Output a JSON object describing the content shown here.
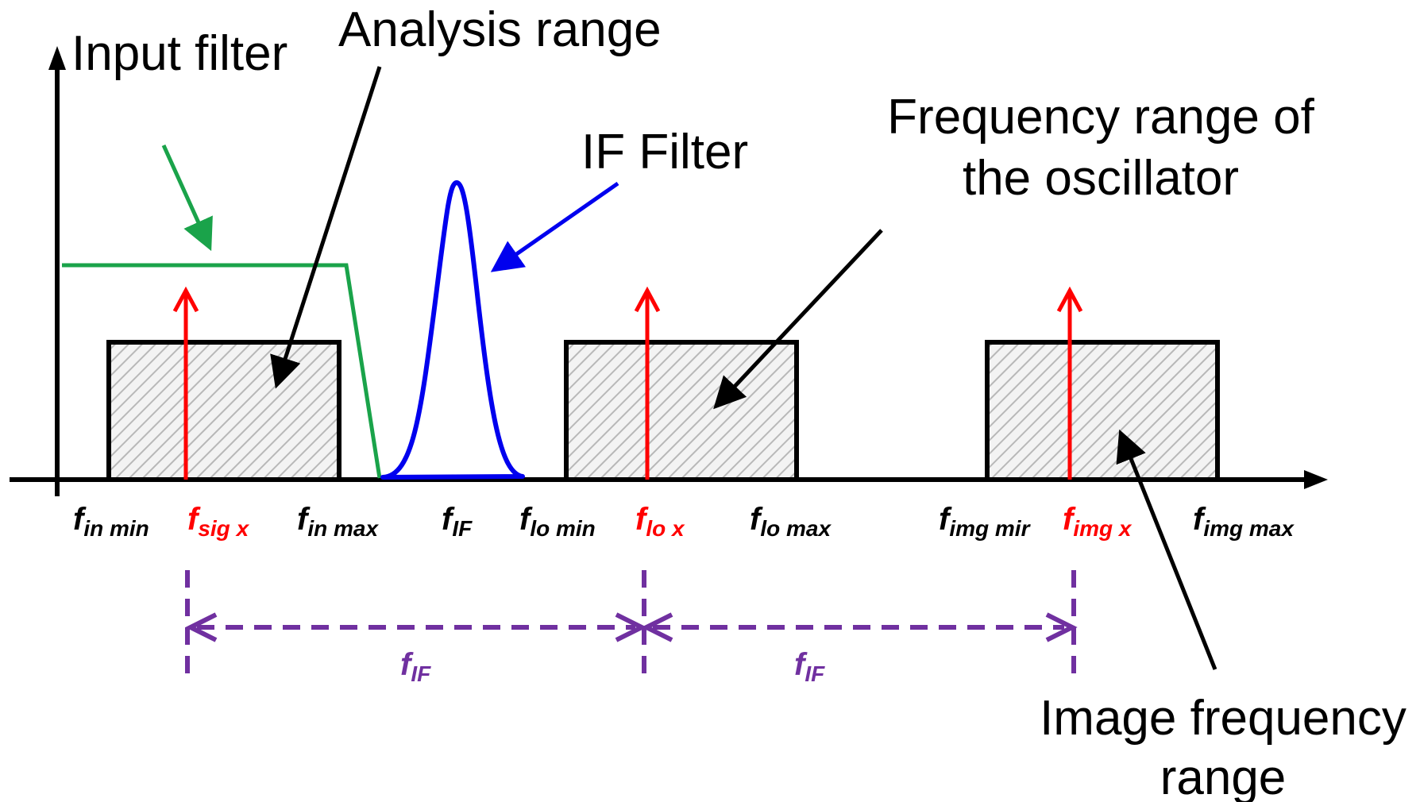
{
  "labels": {
    "input_filter": "Input filter",
    "analysis_range": "Analysis range",
    "if_filter": "IF Filter",
    "oscillator_line1": "Frequency range of",
    "oscillator_line2": "the oscillator",
    "image_line1": "Image frequency",
    "image_line2": "range"
  },
  "ticks": [
    {
      "main": "f",
      "sub": "in min"
    },
    {
      "main": "f",
      "sub": "sig x"
    },
    {
      "main": "f",
      "sub": "in max"
    },
    {
      "main": "f",
      "sub": "IF"
    },
    {
      "main": "f",
      "sub": "lo min"
    },
    {
      "main": "f",
      "sub": "lo x"
    },
    {
      "main": "f",
      "sub": "lo max"
    },
    {
      "main": "f",
      "sub": "img mir"
    },
    {
      "main": "f",
      "sub": "img x"
    },
    {
      "main": "f",
      "sub": "img max"
    }
  ],
  "spacing": {
    "left": {
      "main": "f",
      "sub": "IF"
    },
    "right": {
      "main": "f",
      "sub": "IF"
    }
  },
  "colors": {
    "axis": "#000000",
    "input_filter": "#1aa34a",
    "if_filter": "#0000ee",
    "signal": "#ff0000",
    "spacing": "#7030a0",
    "hatch": "#b8b8b8"
  }
}
